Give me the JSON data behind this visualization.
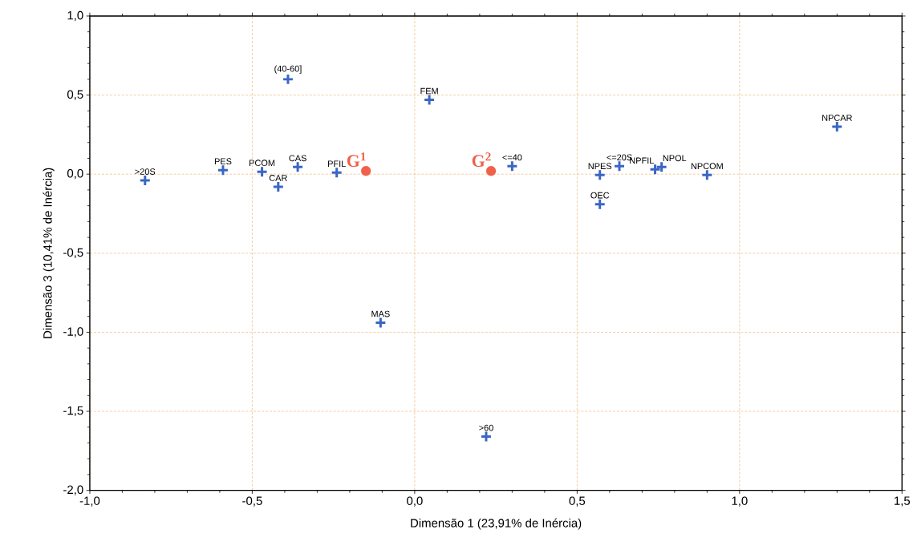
{
  "chart_data": {
    "type": "scatter",
    "xlabel": "Dimensão 1  (23,91% de Inércia)",
    "ylabel": "Dimensão 3  (10,41% de Inércia)",
    "xlim": [
      -1.0,
      1.5
    ],
    "ylim": [
      -2.0,
      1.0
    ],
    "xticks": [
      {
        "value": -1.0,
        "label": "-1,0"
      },
      {
        "value": -0.5,
        "label": "-0,5"
      },
      {
        "value": 0.0,
        "label": "0,0"
      },
      {
        "value": 0.5,
        "label": "0,5"
      },
      {
        "value": 1.0,
        "label": "1,0"
      },
      {
        "value": 1.5,
        "label": "1,5"
      }
    ],
    "yticks": [
      {
        "value": -2.0,
        "label": "-2,0"
      },
      {
        "value": -1.5,
        "label": "-1,5"
      },
      {
        "value": -1.0,
        "label": "-1,0"
      },
      {
        "value": -0.5,
        "label": "-0,5"
      },
      {
        "value": 0.0,
        "label": "0,0"
      },
      {
        "value": 0.5,
        "label": "0,5"
      },
      {
        "value": 1.0,
        "label": "1,0"
      }
    ],
    "grid": true,
    "series": [
      {
        "color": "#3a66c4",
        "marker": "cross",
        "x": [
          -0.83,
          -0.59,
          -0.47,
          -0.42,
          -0.36,
          -0.24,
          -0.39,
          0.045,
          -0.105,
          0.22,
          0.3,
          0.57,
          0.63,
          0.57,
          0.74,
          0.76,
          0.9,
          1.3
        ],
        "values": [
          -0.04,
          0.025,
          0.015,
          -0.08,
          0.045,
          0.01,
          0.6,
          0.47,
          -0.94,
          -1.66,
          0.05,
          -0.005,
          0.05,
          -0.19,
          0.03,
          0.045,
          -0.005,
          0.3
        ]
      },
      {
        "color": "#f0604a",
        "marker": "circle",
        "x": [
          -0.15,
          0.235
        ],
        "values": [
          0.02,
          0.02
        ]
      }
    ],
    "annotations": [
      {
        "text": ">20S",
        "x": -0.83,
        "y": -0.04
      },
      {
        "text": "PES",
        "x": -0.59,
        "y": 0.025
      },
      {
        "text": "PCOM",
        "x": -0.47,
        "y": 0.015
      },
      {
        "text": "CAR",
        "x": -0.42,
        "y": -0.08
      },
      {
        "text": "CAS",
        "x": -0.36,
        "y": 0.045
      },
      {
        "text": "PFIL",
        "x": -0.24,
        "y": 0.01
      },
      {
        "text": "(40-60]",
        "x": -0.39,
        "y": 0.6
      },
      {
        "text": "FEM",
        "x": 0.045,
        "y": 0.47
      },
      {
        "text": "MAS",
        "x": -0.105,
        "y": -0.94
      },
      {
        "text": ">60",
        "x": 0.22,
        "y": -1.66
      },
      {
        "text": "<=40",
        "x": 0.3,
        "y": 0.05
      },
      {
        "text": "NPES",
        "x": 0.57,
        "y": -0.005
      },
      {
        "text": "<=20S",
        "x": 0.63,
        "y": 0.05
      },
      {
        "text": "OEC",
        "x": 0.57,
        "y": -0.19
      },
      {
        "text": "NPFIL",
        "x": 0.74,
        "y": 0.03
      },
      {
        "text": "NPOL",
        "x": 0.76,
        "y": 0.045
      },
      {
        "text": "NPCOM",
        "x": 0.9,
        "y": -0.005
      },
      {
        "text": "NPCAR",
        "x": 1.3,
        "y": 0.3
      },
      {
        "text": "G$^{1}$",
        "x": -0.15,
        "y": 0.02
      },
      {
        "text": "G$^{2}$",
        "x": 0.235,
        "y": 0.02
      }
    ]
  }
}
